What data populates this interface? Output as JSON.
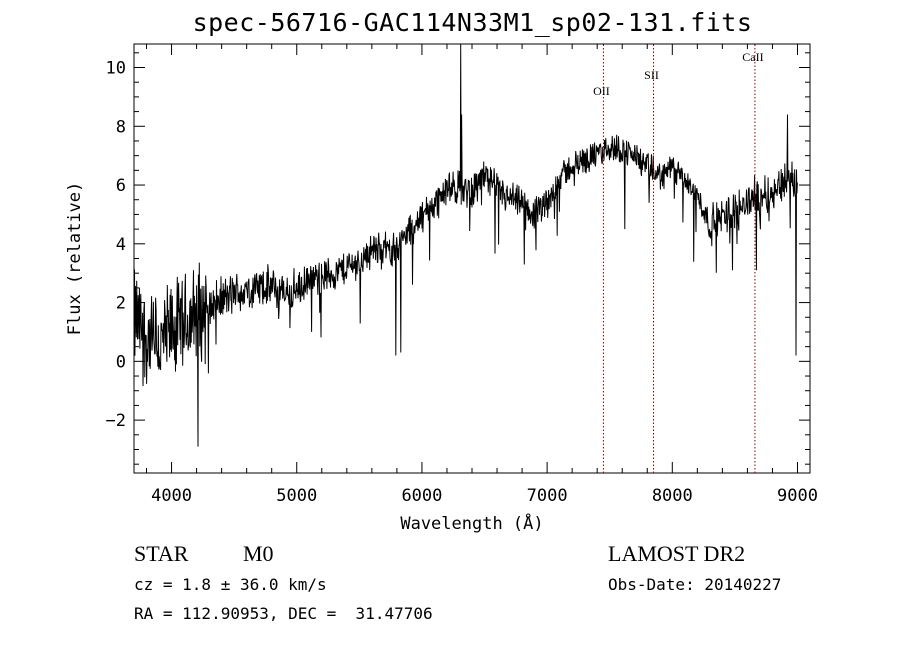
{
  "chart_data": {
    "type": "line",
    "title": "spec-56716-GAC114N33M1_sp02-131.fits",
    "xlabel": "Wavelength (Å)",
    "ylabel": "Flux (relative)",
    "xlim": [
      3700,
      9100
    ],
    "ylim": [
      -3.8,
      10.8
    ],
    "x_ticks": [
      4000,
      5000,
      6000,
      7000,
      8000,
      9000
    ],
    "y_ticks": [
      -2,
      0,
      2,
      4,
      6,
      8,
      10
    ],
    "grid": false,
    "spectrum_anchors": {
      "x": [
        3700,
        3800,
        3900,
        4000,
        4100,
        4200,
        4300,
        4400,
        4500,
        4600,
        4700,
        4800,
        4900,
        5000,
        5100,
        5200,
        5300,
        5400,
        5500,
        5600,
        5700,
        5800,
        5900,
        6000,
        6100,
        6200,
        6300,
        6400,
        6500,
        6600,
        6700,
        6800,
        6900,
        7000,
        7100,
        7200,
        7300,
        7400,
        7500,
        7600,
        7700,
        7800,
        7900,
        8000,
        8100,
        8200,
        8300,
        8400,
        8500,
        8600,
        8700,
        8800,
        8900,
        9000
      ],
      "y": [
        1.5,
        0.8,
        0.5,
        1.0,
        1.2,
        1.6,
        1.9,
        2.1,
        2.3,
        2.4,
        2.5,
        2.5,
        2.3,
        2.4,
        2.7,
        2.9,
        3.0,
        3.2,
        3.4,
        3.8,
        3.8,
        3.9,
        4.4,
        4.9,
        5.4,
        5.8,
        5.9,
        5.8,
        6.4,
        5.8,
        5.5,
        5.3,
        5.0,
        5.3,
        6.3,
        6.6,
        6.9,
        7.0,
        7.3,
        7.2,
        7.0,
        6.6,
        6.3,
        6.6,
        6.1,
        5.7,
        4.6,
        4.9,
        5.2,
        5.4,
        5.7,
        5.7,
        6.2,
        6.0
      ]
    },
    "annotations": [
      {
        "label": "OII",
        "x": 7450
      },
      {
        "label": "SII",
        "x": 7850
      },
      {
        "label": "CaII",
        "x": 8660
      }
    ],
    "line_color": "#000000",
    "annotation_color": "#8b0000"
  },
  "info": {
    "object_class": "STAR",
    "subclass": "M0",
    "survey": "LAMOST DR2",
    "cz": "cz = 1.8 ± 36.0 km/s",
    "obs_date": "Obs-Date: 20140227",
    "coords": "RA = 112.90953, DEC =  31.47706"
  }
}
